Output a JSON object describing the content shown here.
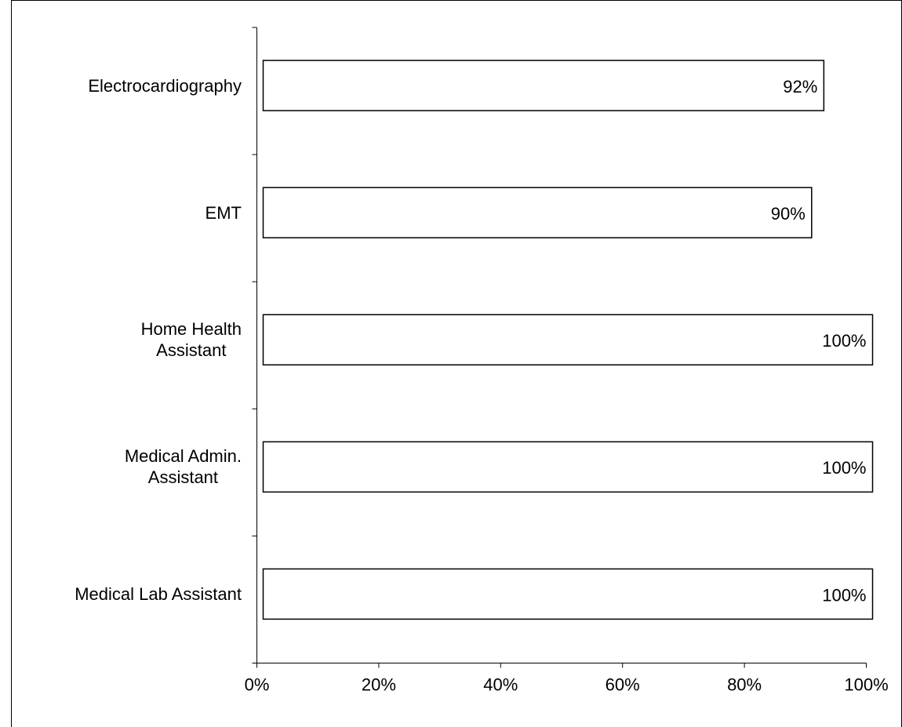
{
  "chart_data": {
    "type": "bar",
    "orientation": "horizontal",
    "categories": [
      "Electrocardiography",
      "EMT",
      "Home Health\nAssistant",
      "Medical Admin.\nAssistant",
      "Medical Lab Assistant"
    ],
    "values": [
      92,
      90,
      100,
      100,
      100
    ],
    "value_labels": [
      "92%",
      "90%",
      "100%",
      "100%",
      "100%"
    ],
    "color": "#ffffff",
    "xlim": [
      0,
      100
    ],
    "xticks": [
      {
        "value": 0,
        "label": "0%"
      },
      {
        "value": 20,
        "label": "20%"
      },
      {
        "value": 40,
        "label": "40%"
      },
      {
        "value": 60,
        "label": "60%"
      },
      {
        "value": 80,
        "label": "80%"
      },
      {
        "value": 100,
        "label": "100%"
      }
    ],
    "grid": false
  }
}
